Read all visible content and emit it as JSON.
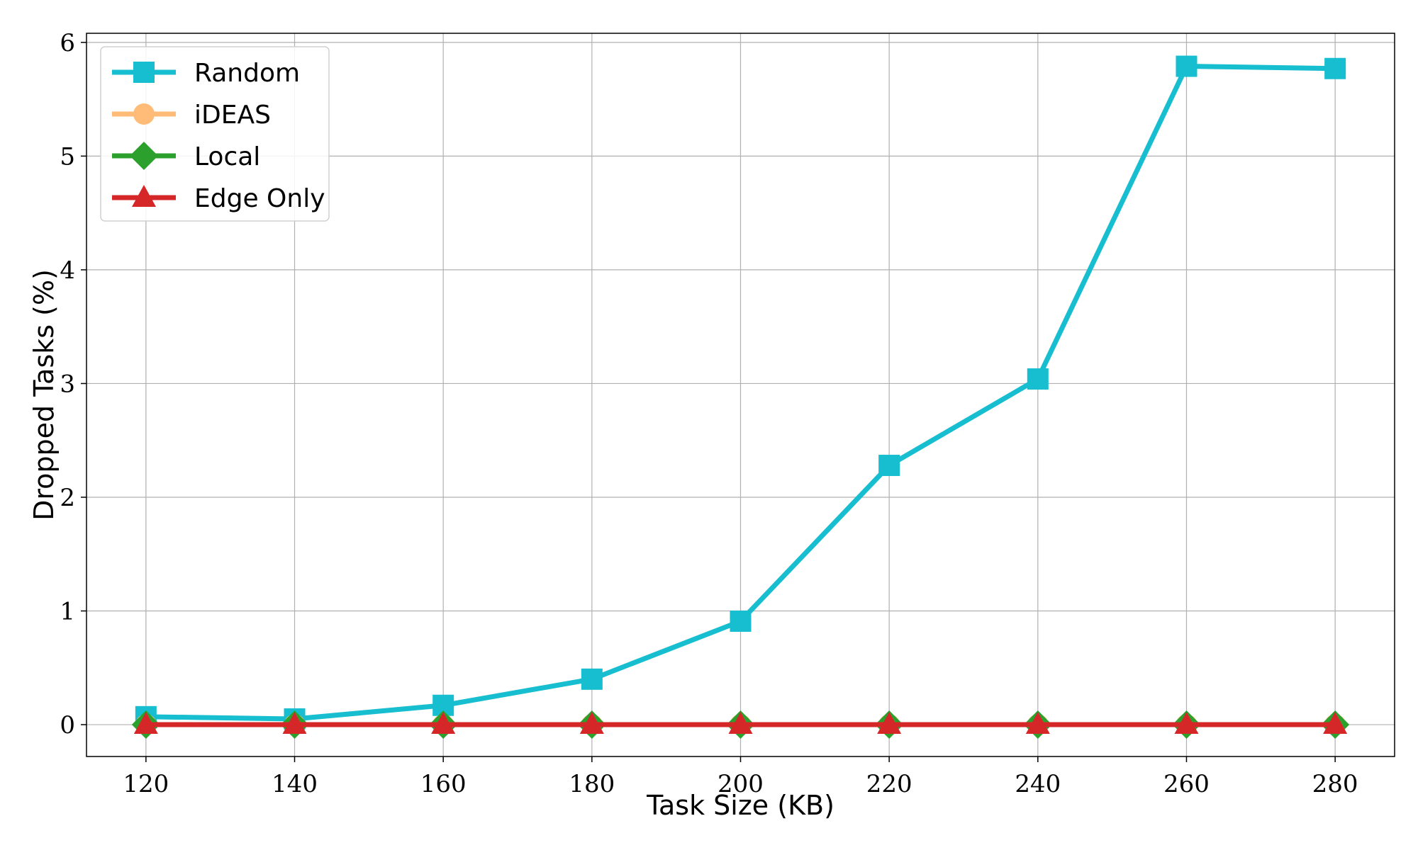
{
  "chart_data": {
    "type": "line",
    "xlabel": "Task Size (KB)",
    "ylabel": "Dropped Tasks (%)",
    "x": [
      120,
      140,
      160,
      180,
      200,
      220,
      240,
      260,
      280
    ],
    "xlim": [
      112,
      288
    ],
    "ylim": [
      -0.28,
      6.08
    ],
    "xticks": [
      "120",
      "140",
      "160",
      "180",
      "200",
      "220",
      "240",
      "260",
      "280"
    ],
    "yticks": [
      "0",
      "1",
      "2",
      "3",
      "4",
      "5",
      "6"
    ],
    "grid": true,
    "legend_position": "top-left",
    "series": [
      {
        "name": "Random",
        "color": "#17becf",
        "marker": "square",
        "values": [
          0.07,
          0.05,
          0.17,
          0.4,
          0.91,
          2.28,
          3.04,
          5.79,
          5.77
        ]
      },
      {
        "name": "iDEAS",
        "color": "#ffbb78",
        "marker": "circle",
        "values": [
          0,
          0,
          0,
          0,
          0,
          0,
          0,
          0,
          0
        ]
      },
      {
        "name": "Local",
        "color": "#2ca02c",
        "marker": "diamond",
        "values": [
          0,
          0,
          0,
          0,
          0,
          0,
          0,
          0,
          0
        ]
      },
      {
        "name": "Edge Only",
        "color": "#d62728",
        "marker": "triangle",
        "values": [
          0,
          0,
          0,
          0,
          0,
          0,
          0,
          0,
          0
        ]
      }
    ]
  }
}
